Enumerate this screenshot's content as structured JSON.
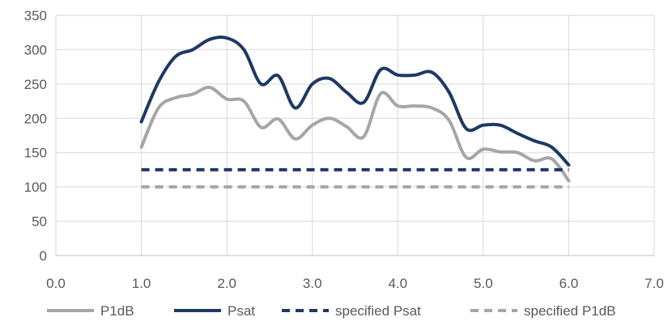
{
  "chart_data": {
    "type": "line",
    "title": "",
    "xlabel": "",
    "ylabel": "",
    "xlim": [
      0,
      7
    ],
    "ylim": [
      0,
      350
    ],
    "xticks": [
      0,
      1,
      2,
      3,
      4,
      5,
      6,
      7
    ],
    "xtick_labels": [
      "0.0",
      "1.0",
      "2.0",
      "3.0",
      "4.0",
      "5.0",
      "6.0",
      "7.0"
    ],
    "yticks": [
      0,
      50,
      100,
      150,
      200,
      250,
      300,
      350
    ],
    "ytick_labels": [
      "0",
      "50",
      "100",
      "150",
      "200",
      "250",
      "300",
      "350"
    ],
    "grid": true,
    "legend_position": "bottom",
    "series": [
      {
        "name": "P1dB",
        "color": "#a6a6a6",
        "style": "solid",
        "x": [
          1.0,
          1.2,
          1.4,
          1.6,
          1.8,
          2.0,
          2.2,
          2.4,
          2.6,
          2.8,
          3.0,
          3.2,
          3.4,
          3.6,
          3.8,
          4.0,
          4.2,
          4.4,
          4.6,
          4.8,
          5.0,
          5.2,
          5.4,
          5.6,
          5.8,
          6.0
        ],
        "y": [
          158,
          215,
          230,
          235,
          245,
          228,
          225,
          187,
          199,
          170,
          190,
          200,
          188,
          173,
          236,
          218,
          218,
          215,
          197,
          143,
          155,
          151,
          150,
          138,
          141,
          109
        ]
      },
      {
        "name": "Psat",
        "color": "#1f3864",
        "style": "solid",
        "x": [
          1.0,
          1.2,
          1.4,
          1.6,
          1.8,
          2.0,
          2.2,
          2.4,
          2.6,
          2.8,
          3.0,
          3.2,
          3.4,
          3.6,
          3.8,
          4.0,
          4.2,
          4.4,
          4.6,
          4.8,
          5.0,
          5.2,
          5.4,
          5.6,
          5.8,
          6.0
        ],
        "y": [
          195,
          253,
          290,
          300,
          315,
          317,
          300,
          250,
          262,
          215,
          250,
          258,
          238,
          223,
          271,
          263,
          263,
          267,
          238,
          185,
          190,
          190,
          178,
          167,
          158,
          132
        ]
      },
      {
        "name": "specified Psat",
        "color": "#1f3864",
        "style": "dashed",
        "x": [
          1.0,
          6.0
        ],
        "y": [
          125,
          125
        ]
      },
      {
        "name": "specified P1dB",
        "color": "#a6a6a6",
        "style": "dashed",
        "x": [
          1.0,
          6.0
        ],
        "y": [
          100,
          100
        ]
      }
    ]
  }
}
